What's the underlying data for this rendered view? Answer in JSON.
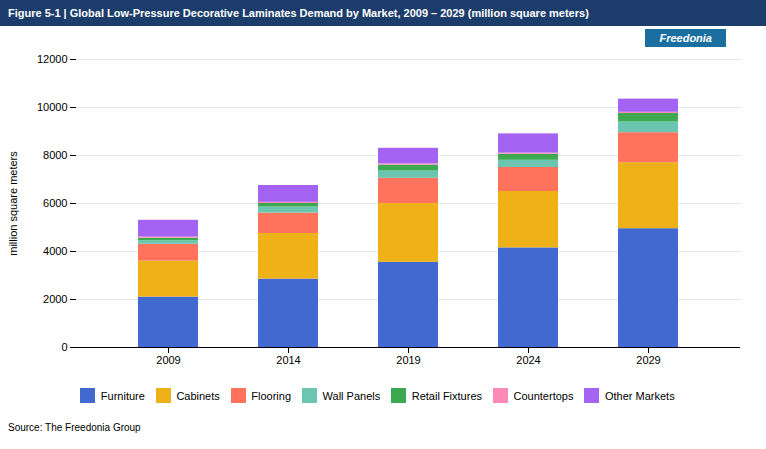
{
  "chart_data": {
    "type": "bar",
    "stacked": true,
    "title": "Figure 5-1 | Global Low-Pressure Decorative Laminates Demand by Market, 2009 – 2029 (million square meters)",
    "ylabel": "million square meters",
    "categories": [
      "2009",
      "2014",
      "2019",
      "2024",
      "2029"
    ],
    "series": [
      {
        "name": "Furniture",
        "values": [
          2100,
          2850,
          3550,
          4150,
          4950
        ]
      },
      {
        "name": "Cabinets",
        "values": [
          1500,
          1900,
          2450,
          2350,
          2750
        ]
      },
      {
        "name": "Flooring",
        "values": [
          700,
          850,
          1050,
          1000,
          1250
        ]
      },
      {
        "name": "Wall Panels",
        "values": [
          150,
          250,
          300,
          300,
          450
        ]
      },
      {
        "name": "Retail Fixtures",
        "values": [
          100,
          150,
          250,
          250,
          350
        ]
      },
      {
        "name": "Countertops",
        "values": [
          50,
          50,
          50,
          50,
          50
        ]
      },
      {
        "name": "Other Markets",
        "values": [
          700,
          700,
          650,
          800,
          550
        ]
      }
    ],
    "ylim": [
      0,
      12000
    ],
    "yticks": [
      0,
      2000,
      4000,
      6000,
      8000,
      10000,
      12000
    ],
    "grid": true,
    "legend": "bottom",
    "annotations": [
      "Freedonia",
      "Source: The Freedonia Group"
    ]
  }
}
